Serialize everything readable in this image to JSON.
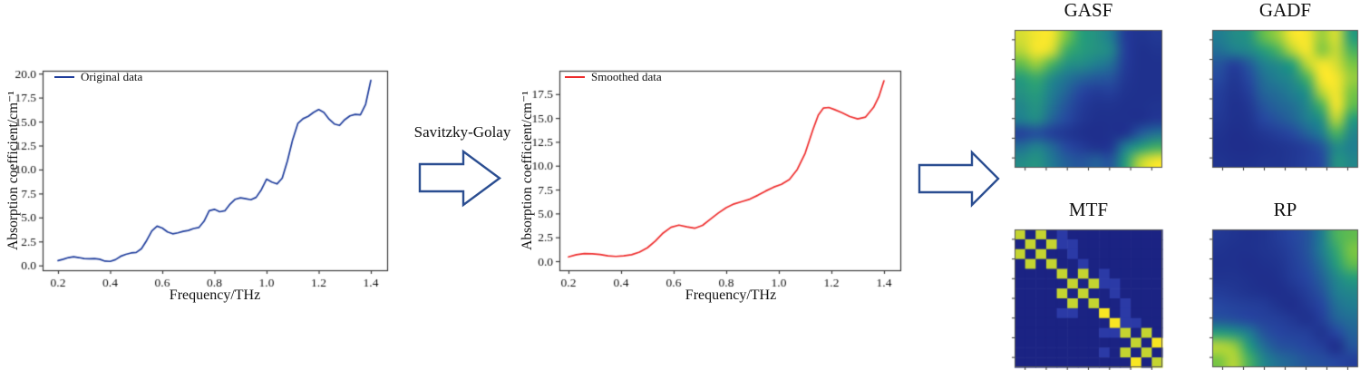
{
  "process": {
    "smoothing_method": "Savitzky-Golay"
  },
  "colors": {
    "original_line": "#1f3d9c",
    "smoothed_line": "#ee2b2b",
    "arrow_outline": "#2b4e91",
    "axis_frame": "#3a3a3a",
    "mtf_palette": [
      "#1b2383",
      "#2b3aa6",
      "#c4d430",
      "#f8e622"
    ],
    "heat_stops": [
      [
        0.0,
        "#1b2382"
      ],
      [
        0.25,
        "#2646a0"
      ],
      [
        0.45,
        "#207d91"
      ],
      [
        0.62,
        "#28a078"
      ],
      [
        0.78,
        "#6ec346"
      ],
      [
        1.0,
        "#f5e62d"
      ]
    ]
  },
  "chart_data": [
    {
      "type": "line",
      "name": "Original data",
      "title": "",
      "xlabel": "Frequency/THz",
      "ylabel": "Absorption coefficient/cm⁻¹",
      "xlim": [
        0.1409,
        1.4626
      ],
      "ylim": [
        -0.5,
        20.3
      ],
      "grid": false,
      "legend_position": "upper left",
      "xticks": [
        0.2,
        0.4,
        0.6,
        0.8,
        1.0,
        1.2,
        1.4
      ],
      "xtick_labels": [
        "0.2",
        "0.4",
        "0.6",
        "0.8",
        "1.0",
        "1.2",
        "1.4"
      ],
      "yticks": [
        0.0,
        2.5,
        5.0,
        7.5,
        10.0,
        12.5,
        15.0,
        17.5,
        20.0
      ],
      "ytick_labels": [
        "0.0",
        "2.5",
        "5.0",
        "7.5",
        "10.0",
        "12.5",
        "15.0",
        "17.5",
        "20.0"
      ],
      "x": [
        0.2,
        0.22,
        0.24,
        0.26,
        0.28,
        0.3,
        0.32,
        0.34,
        0.36,
        0.38,
        0.4,
        0.42,
        0.44,
        0.46,
        0.48,
        0.5,
        0.52,
        0.54,
        0.56,
        0.58,
        0.6,
        0.62,
        0.64,
        0.66,
        0.68,
        0.7,
        0.72,
        0.74,
        0.76,
        0.78,
        0.8,
        0.82,
        0.84,
        0.86,
        0.88,
        0.9,
        0.92,
        0.94,
        0.96,
        0.98,
        1.0,
        1.02,
        1.04,
        1.06,
        1.08,
        1.1,
        1.12,
        1.14,
        1.16,
        1.18,
        1.2,
        1.22,
        1.24,
        1.26,
        1.28,
        1.3,
        1.32,
        1.34,
        1.36,
        1.38,
        1.4
      ],
      "y": [
        0.5,
        0.65,
        0.82,
        0.9,
        0.82,
        0.72,
        0.7,
        0.72,
        0.65,
        0.45,
        0.42,
        0.6,
        0.95,
        1.15,
        1.3,
        1.35,
        1.75,
        2.6,
        3.6,
        4.1,
        3.9,
        3.5,
        3.3,
        3.4,
        3.55,
        3.65,
        3.85,
        3.95,
        4.6,
        5.7,
        5.85,
        5.6,
        5.7,
        6.4,
        6.9,
        7.05,
        6.95,
        6.85,
        7.1,
        7.9,
        9.0,
        8.7,
        8.5,
        9.1,
        10.9,
        13.1,
        14.8,
        15.3,
        15.55,
        15.95,
        16.25,
        15.95,
        15.25,
        14.75,
        14.6,
        15.2,
        15.6,
        15.75,
        15.7,
        16.8,
        19.3
      ]
    },
    {
      "type": "line",
      "name": "Smoothed data",
      "title": "",
      "xlabel": "Frequency/THz",
      "ylabel": "Absorption coefficient/cm⁻¹",
      "xlim": [
        0.1655,
        1.4621
      ],
      "ylim": [
        -0.95,
        19.95
      ],
      "grid": false,
      "legend_position": "upper left",
      "xticks": [
        0.2,
        0.4,
        0.6,
        0.8,
        1.0,
        1.2,
        1.4
      ],
      "xtick_labels": [
        "0.2",
        "0.4",
        "0.6",
        "0.8",
        "1.0",
        "1.2",
        "1.4"
      ],
      "yticks": [
        0.0,
        2.5,
        5.0,
        7.5,
        10.0,
        12.5,
        15.0,
        17.5
      ],
      "ytick_labels": [
        "0.0",
        "2.5",
        "5.0",
        "7.5",
        "10.0",
        "12.5",
        "15.0",
        "17.5"
      ],
      "x": [
        0.2,
        0.23,
        0.26,
        0.29,
        0.32,
        0.35,
        0.38,
        0.41,
        0.44,
        0.47,
        0.5,
        0.53,
        0.56,
        0.59,
        0.62,
        0.65,
        0.68,
        0.71,
        0.74,
        0.77,
        0.8,
        0.83,
        0.86,
        0.89,
        0.92,
        0.95,
        0.98,
        1.01,
        1.04,
        1.07,
        1.1,
        1.13,
        1.15,
        1.17,
        1.19,
        1.21,
        1.24,
        1.27,
        1.3,
        1.33,
        1.36,
        1.38,
        1.4
      ],
      "y": [
        0.45,
        0.68,
        0.8,
        0.78,
        0.7,
        0.55,
        0.5,
        0.55,
        0.68,
        0.95,
        1.4,
        2.1,
        2.95,
        3.55,
        3.78,
        3.6,
        3.45,
        3.75,
        4.4,
        5.05,
        5.6,
        6.0,
        6.25,
        6.5,
        6.9,
        7.35,
        7.75,
        8.05,
        8.55,
        9.6,
        11.3,
        13.8,
        15.3,
        16.05,
        16.1,
        15.9,
        15.55,
        15.15,
        14.9,
        15.1,
        16.1,
        17.2,
        18.9
      ]
    },
    {
      "type": "heatmap",
      "title": "GASF",
      "values": [
        [
          0.95,
          1.0,
          1.0,
          0.8,
          0.62,
          0.55,
          0.45,
          0.18,
          0.12,
          0.15
        ],
        [
          0.9,
          1.0,
          0.95,
          0.68,
          0.6,
          0.55,
          0.5,
          0.2,
          0.1,
          0.12
        ],
        [
          0.75,
          0.85,
          0.7,
          0.55,
          0.52,
          0.46,
          0.4,
          0.18,
          0.1,
          0.1
        ],
        [
          0.6,
          0.66,
          0.52,
          0.42,
          0.36,
          0.32,
          0.3,
          0.15,
          0.1,
          0.1
        ],
        [
          0.55,
          0.6,
          0.46,
          0.36,
          0.24,
          0.18,
          0.2,
          0.12,
          0.1,
          0.1
        ],
        [
          0.5,
          0.56,
          0.42,
          0.3,
          0.18,
          0.12,
          0.12,
          0.1,
          0.1,
          0.12
        ],
        [
          0.46,
          0.52,
          0.36,
          0.26,
          0.15,
          0.1,
          0.1,
          0.1,
          0.1,
          0.15
        ],
        [
          0.22,
          0.28,
          0.2,
          0.14,
          0.1,
          0.08,
          0.1,
          0.12,
          0.32,
          0.4
        ],
        [
          0.4,
          0.48,
          0.38,
          0.26,
          0.18,
          0.12,
          0.14,
          0.45,
          0.6,
          0.68
        ],
        [
          0.52,
          0.56,
          0.44,
          0.34,
          0.3,
          0.34,
          0.3,
          0.6,
          0.9,
          1.0
        ]
      ]
    },
    {
      "type": "heatmap",
      "title": "GADF",
      "values": [
        [
          0.45,
          0.52,
          0.56,
          0.75,
          0.85,
          1.0,
          1.0,
          0.85,
          0.95,
          0.6
        ],
        [
          0.4,
          0.46,
          0.5,
          0.6,
          0.7,
          0.9,
          1.0,
          0.82,
          0.92,
          0.7
        ],
        [
          0.3,
          0.2,
          0.32,
          0.46,
          0.52,
          0.62,
          0.9,
          1.0,
          0.95,
          0.8
        ],
        [
          0.26,
          0.14,
          0.26,
          0.4,
          0.46,
          0.52,
          0.7,
          1.0,
          1.0,
          0.85
        ],
        [
          0.2,
          0.12,
          0.2,
          0.36,
          0.4,
          0.46,
          0.56,
          0.9,
          1.0,
          0.8
        ],
        [
          0.18,
          0.1,
          0.15,
          0.3,
          0.36,
          0.4,
          0.5,
          0.7,
          1.0,
          0.75
        ],
        [
          0.15,
          0.1,
          0.12,
          0.25,
          0.3,
          0.36,
          0.45,
          0.55,
          0.9,
          0.6
        ],
        [
          0.12,
          0.08,
          0.1,
          0.15,
          0.2,
          0.26,
          0.35,
          0.45,
          0.7,
          0.5
        ],
        [
          0.1,
          0.08,
          0.08,
          0.1,
          0.12,
          0.15,
          0.2,
          0.3,
          0.52,
          0.46
        ],
        [
          0.12,
          0.1,
          0.1,
          0.12,
          0.12,
          0.15,
          0.2,
          0.26,
          0.55,
          0.5
        ]
      ]
    },
    {
      "type": "heatmap",
      "title": "MTF",
      "cells": [
        [
          2,
          0,
          2,
          0,
          1,
          0,
          0,
          0,
          0,
          0,
          0,
          0,
          0,
          0
        ],
        [
          0,
          2,
          0,
          2,
          1,
          1,
          0,
          0,
          0,
          0,
          0,
          0,
          0,
          0
        ],
        [
          2,
          0,
          2,
          0,
          0,
          1,
          0,
          0,
          0,
          0,
          0,
          0,
          0,
          0
        ],
        [
          0,
          2,
          0,
          2,
          0,
          0,
          1,
          0,
          0,
          0,
          0,
          0,
          0,
          0
        ],
        [
          0,
          0,
          0,
          0,
          2,
          0,
          2,
          0,
          1,
          0,
          0,
          0,
          0,
          0
        ],
        [
          0,
          0,
          0,
          0,
          0,
          2,
          0,
          2,
          1,
          1,
          0,
          0,
          0,
          0
        ],
        [
          0,
          0,
          0,
          0,
          2,
          0,
          2,
          0,
          0,
          1,
          0,
          0,
          0,
          0
        ],
        [
          0,
          0,
          0,
          0,
          0,
          2,
          0,
          2,
          0,
          0,
          1,
          0,
          0,
          0
        ],
        [
          0,
          0,
          0,
          0,
          1,
          1,
          0,
          0,
          3,
          0,
          1,
          0,
          0,
          0
        ],
        [
          0,
          0,
          0,
          0,
          0,
          0,
          0,
          0,
          0,
          3,
          1,
          1,
          0,
          0
        ],
        [
          0,
          0,
          0,
          0,
          0,
          0,
          0,
          0,
          1,
          1,
          2,
          0,
          2,
          0
        ],
        [
          0,
          0,
          0,
          0,
          0,
          0,
          0,
          0,
          0,
          0,
          0,
          2,
          0,
          3
        ],
        [
          0,
          0,
          0,
          0,
          0,
          0,
          0,
          0,
          1,
          0,
          2,
          0,
          2,
          0
        ],
        [
          0,
          0,
          0,
          0,
          0,
          0,
          0,
          0,
          0,
          0,
          0,
          3,
          0,
          2
        ]
      ]
    },
    {
      "type": "heatmap",
      "title": "RP",
      "values": [
        [
          0.15,
          0.12,
          0.1,
          0.12,
          0.18,
          0.25,
          0.3,
          0.45,
          0.7,
          0.75
        ],
        [
          0.12,
          0.1,
          0.1,
          0.12,
          0.15,
          0.22,
          0.3,
          0.45,
          0.65,
          0.8
        ],
        [
          0.1,
          0.1,
          0.08,
          0.1,
          0.12,
          0.2,
          0.28,
          0.4,
          0.6,
          0.75
        ],
        [
          0.12,
          0.12,
          0.1,
          0.08,
          0.1,
          0.18,
          0.25,
          0.35,
          0.5,
          0.6
        ],
        [
          0.18,
          0.15,
          0.12,
          0.1,
          0.08,
          0.12,
          0.2,
          0.3,
          0.45,
          0.5
        ],
        [
          0.25,
          0.22,
          0.2,
          0.18,
          0.12,
          0.08,
          0.15,
          0.25,
          0.4,
          0.45
        ],
        [
          0.3,
          0.28,
          0.25,
          0.22,
          0.2,
          0.15,
          0.1,
          0.2,
          0.35,
          0.4
        ],
        [
          0.6,
          0.55,
          0.45,
          0.3,
          0.25,
          0.22,
          0.2,
          0.12,
          0.25,
          0.35
        ],
        [
          0.9,
          0.85,
          0.6,
          0.4,
          0.3,
          0.28,
          0.25,
          0.2,
          0.08,
          0.3
        ],
        [
          0.8,
          0.9,
          0.7,
          0.5,
          0.4,
          0.35,
          0.3,
          0.28,
          0.25,
          0.2
        ]
      ]
    }
  ]
}
